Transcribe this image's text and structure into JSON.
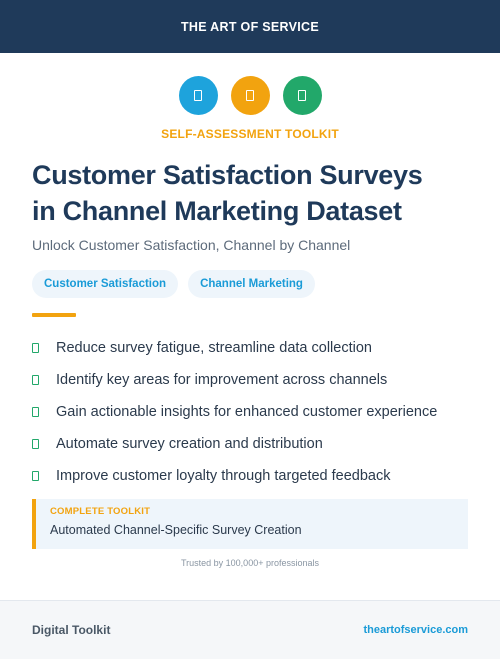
{
  "header": {
    "title": "THE ART OF SERVICE"
  },
  "icons": [
    {
      "name": "blue-badge-icon",
      "color": "#1ea3dc"
    },
    {
      "name": "orange-badge-icon",
      "color": "#f2a30f"
    },
    {
      "name": "green-badge-icon",
      "color": "#22a86a"
    }
  ],
  "eyebrow": "SELF-ASSESSMENT TOOLKIT",
  "title_line1": "Customer Satisfaction Surveys",
  "title_line2": "in Channel Marketing Dataset",
  "subtitle": "Unlock Customer Satisfaction, Channel by Channel",
  "tags": [
    "Customer Satisfaction",
    "Channel Marketing"
  ],
  "features": [
    "Reduce survey fatigue, streamline data collection",
    "Identify key areas for improvement across channels",
    "Gain actionable insights for enhanced customer experience",
    "Automate survey creation and distribution",
    "Improve customer loyalty through targeted feedback"
  ],
  "callout": {
    "label": "COMPLETE TOOLKIT",
    "text": "Automated Channel-Specific Survey Creation"
  },
  "trusted": "Trusted by 100,000+ professionals",
  "footer": {
    "left": "Digital Toolkit",
    "right": "theartofservice.com"
  },
  "colors": {
    "navy": "#1f3a5a",
    "accent_orange": "#f2a30f",
    "accent_blue": "#1a9bd7",
    "accent_green": "#22a86a"
  }
}
